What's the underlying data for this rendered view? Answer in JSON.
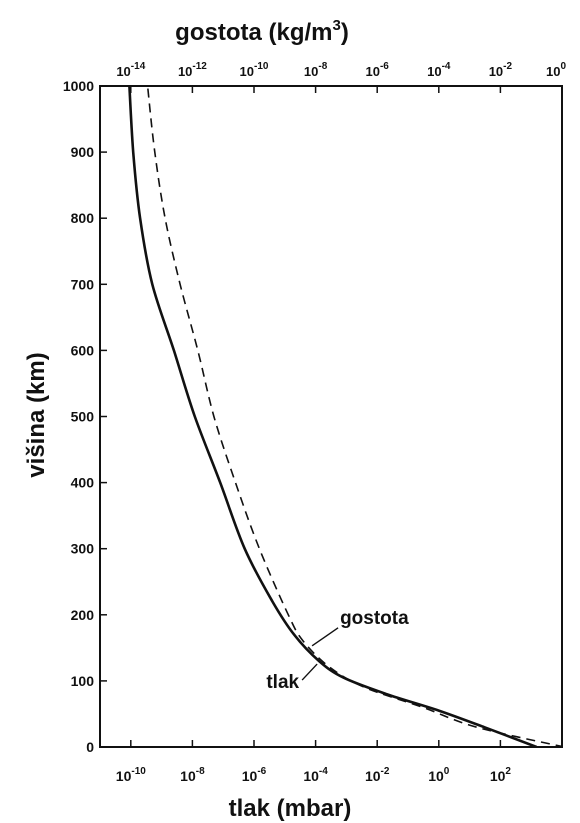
{
  "chart_data": {
    "type": "line",
    "title": "",
    "xlabel_bottom": "tlak (mbar)",
    "xlabel_top": "gostota (kg/m3)",
    "xlabel_top_base": "gostota (kg/m",
    "xlabel_top_sup": "3",
    "xlabel_top_tail": ")",
    "ylabel": "višina (km)",
    "ylim": [
      0,
      1000
    ],
    "yticks": [
      0,
      100,
      200,
      300,
      400,
      500,
      600,
      700,
      800,
      900,
      1000
    ],
    "xscale": "log",
    "xlim_bottom": [
      1e-11,
      10000.0
    ],
    "xticks_bottom": [
      {
        "mant": "10",
        "exp": "-10",
        "value": 1e-10
      },
      {
        "mant": "10",
        "exp": "-8",
        "value": 1e-08
      },
      {
        "mant": "10",
        "exp": "-6",
        "value": 1e-06
      },
      {
        "mant": "10",
        "exp": "-4",
        "value": 0.0001
      },
      {
        "mant": "10",
        "exp": "-2",
        "value": 0.01
      },
      {
        "mant": "10",
        "exp": "0",
        "value": 1
      },
      {
        "mant": "10",
        "exp": "2",
        "value": 100
      }
    ],
    "xlim_top": [
      1e-15,
      1
    ],
    "xticks_top": [
      {
        "mant": "10",
        "exp": "-14",
        "value": 1e-14
      },
      {
        "mant": "10",
        "exp": "-12",
        "value": 1e-12
      },
      {
        "mant": "10",
        "exp": "-10",
        "value": 1e-10
      },
      {
        "mant": "10",
        "exp": "-8",
        "value": 1e-08
      },
      {
        "mant": "10",
        "exp": "-6",
        "value": 1e-06
      },
      {
        "mant": "10",
        "exp": "-4",
        "value": 0.0001
      },
      {
        "mant": "10",
        "exp": "-2",
        "value": 0.01
      },
      {
        "mant": "10",
        "exp": "0",
        "value": 1
      }
    ],
    "grid": false,
    "series": [
      {
        "name": "tlak",
        "axis": "bottom",
        "style": "solid",
        "color": "#111111",
        "points": [
          {
            "x": 1500,
            "y": 0
          },
          {
            "x": 30,
            "y": 30
          },
          {
            "x": 1,
            "y": 55
          },
          {
            "x": 0.02,
            "y": 80
          },
          {
            "x": 0.0008,
            "y": 105
          },
          {
            "x": 0.00013,
            "y": 130
          },
          {
            "x": 2e-05,
            "y": 170
          },
          {
            "x": 4e-06,
            "y": 220
          },
          {
            "x": 5e-07,
            "y": 300
          },
          {
            "x": 8e-08,
            "y": 400
          },
          {
            "x": 1.2e-08,
            "y": 500
          },
          {
            "x": 2.5e-09,
            "y": 600
          },
          {
            "x": 5e-10,
            "y": 700
          },
          {
            "x": 2e-10,
            "y": 800
          },
          {
            "x": 1.2e-10,
            "y": 900
          },
          {
            "x": 9e-11,
            "y": 1000
          }
        ]
      },
      {
        "name": "gostota",
        "axis": "top",
        "style": "dashed",
        "color": "#111111",
        "points": [
          {
            "x": 1.2,
            "y": 0
          },
          {
            "x": 0.0017,
            "y": 30
          },
          {
            "x": 3e-05,
            "y": 60
          },
          {
            "x": 4e-07,
            "y": 90
          },
          {
            "x": 3e-08,
            "y": 120
          },
          {
            "x": 4e-09,
            "y": 160
          },
          {
            "x": 1.3e-09,
            "y": 200
          },
          {
            "x": 1.5e-10,
            "y": 300
          },
          {
            "x": 2.5e-11,
            "y": 400
          },
          {
            "x": 5e-12,
            "y": 500
          },
          {
            "x": 1.5e-12,
            "y": 600
          },
          {
            "x": 4e-13,
            "y": 700
          },
          {
            "x": 1.3e-13,
            "y": 800
          },
          {
            "x": 6e-14,
            "y": 900
          },
          {
            "x": 3.5e-14,
            "y": 1000
          }
        ]
      }
    ],
    "annotations": [
      {
        "text": "gostota",
        "target_series": "gostota"
      },
      {
        "text": "tlak",
        "target_series": "tlak"
      }
    ]
  }
}
